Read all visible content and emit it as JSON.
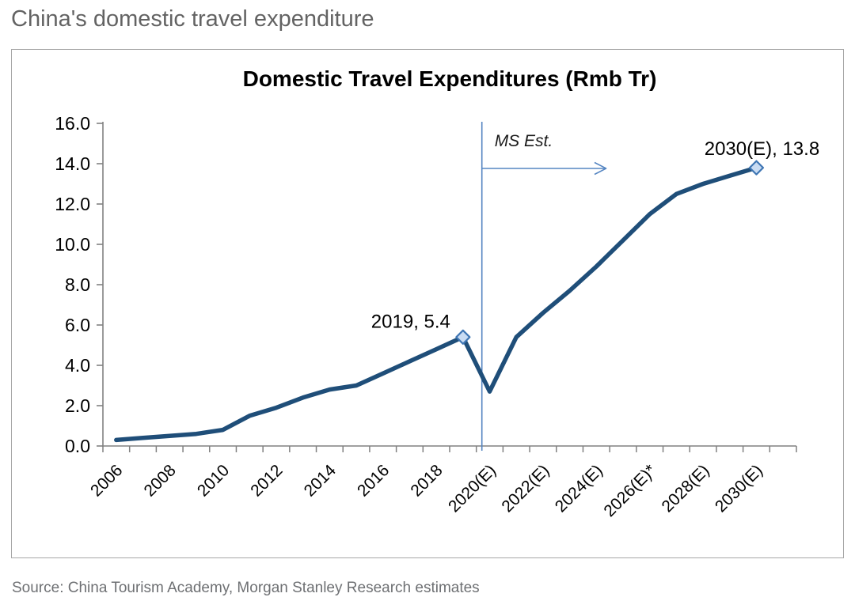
{
  "page": {
    "title": "China's domestic travel expenditure",
    "source": "Source: China Tourism Academy, Morgan Stanley Research estimates"
  },
  "chart_data": {
    "type": "line",
    "title": "Domestic Travel Expenditures (Rmb Tr)",
    "x": [
      2006,
      2007,
      2008,
      2009,
      2010,
      2011,
      2012,
      2013,
      2014,
      2015,
      2016,
      2017,
      2018,
      2019,
      2020,
      2021,
      2022,
      2023,
      2024,
      2025,
      2026,
      2027,
      2028,
      2029,
      2030
    ],
    "values": [
      0.3,
      0.4,
      0.5,
      0.6,
      0.8,
      1.5,
      1.9,
      2.4,
      2.8,
      3.0,
      3.6,
      4.2,
      4.8,
      5.4,
      2.7,
      5.4,
      6.6,
      7.7,
      8.9,
      10.2,
      11.5,
      12.5,
      13.0,
      13.4,
      13.8
    ],
    "x_tick_labels": [
      "2006",
      "2008",
      "2010",
      "2012",
      "2014",
      "2016",
      "2018",
      "2020(E)",
      "2022(E)",
      "2024(E)",
      "2026(E)*",
      "2028(E)",
      "2030(E)"
    ],
    "y_ticks": [
      0,
      2,
      4,
      6,
      8,
      10,
      12,
      14,
      16
    ],
    "ylim": [
      0,
      16
    ],
    "grid": false,
    "legend": "none",
    "estimate_divider_after_index": 13,
    "estimate_annotation": "MS Est.",
    "labeled_points": [
      {
        "index": 13,
        "value": 5.4,
        "label": "2019, 5.4"
      },
      {
        "index": 24,
        "value": 13.8,
        "label": "2030(E), 13.8"
      }
    ],
    "colors": {
      "line": "#1F4E79",
      "marker_fill": "#C9DCF3",
      "marker_stroke": "#3F76B4",
      "divider": "#5585C2",
      "axis": "#818181",
      "text": "#000000",
      "page_title": "#636363",
      "source_text": "#6E7073",
      "background": "#FFFFFF"
    }
  }
}
